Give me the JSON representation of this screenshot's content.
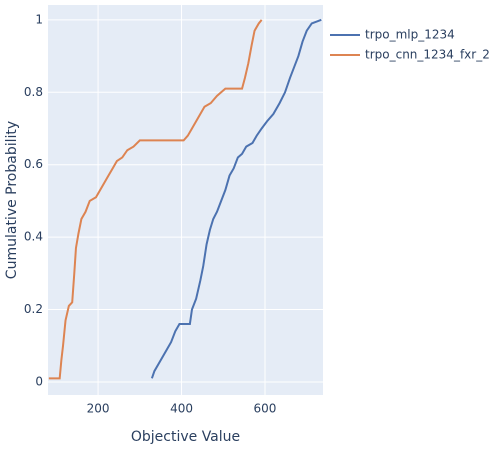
{
  "chart_data": {
    "type": "line",
    "xlabel": "Objective Value",
    "ylabel": "Cumulative Probability",
    "xlim": [
      80,
      739
    ],
    "ylim": [
      -0.036,
      1.041
    ],
    "xticks": [
      200,
      400,
      600
    ],
    "yticks": [
      0,
      0.2,
      0.4,
      0.6,
      0.8,
      1
    ],
    "grid": true,
    "legend": "outside-right-top",
    "series": [
      {
        "name": "trpo_mlp_1234",
        "color": "#4c72b0",
        "x": [
          329,
          335,
          345,
          355,
          365,
          375,
          385,
          395,
          420,
          425,
          435,
          445,
          452,
          460,
          468,
          476,
          485,
          495,
          505,
          515,
          525,
          535,
          545,
          555,
          570,
          580,
          592,
          605,
          620,
          635,
          648,
          660,
          670,
          680,
          690,
          700,
          712,
          735
        ],
        "values": [
          0.01,
          0.03,
          0.05,
          0.07,
          0.09,
          0.11,
          0.14,
          0.16,
          0.16,
          0.2,
          0.23,
          0.28,
          0.32,
          0.38,
          0.42,
          0.45,
          0.47,
          0.5,
          0.53,
          0.57,
          0.59,
          0.62,
          0.63,
          0.65,
          0.66,
          0.68,
          0.7,
          0.72,
          0.74,
          0.77,
          0.8,
          0.84,
          0.87,
          0.9,
          0.94,
          0.97,
          0.99,
          1.0
        ]
      },
      {
        "name": "trpo_cnn_1234_fxr_2",
        "color": "#dd8452",
        "x": [
          82,
          108,
          112,
          116,
          122,
          130,
          138,
          143,
          147,
          153,
          160,
          170,
          180,
          195,
          205,
          215,
          225,
          235,
          245,
          258,
          270,
          285,
          300,
          405,
          415,
          425,
          435,
          445,
          455,
          470,
          485,
          505,
          545,
          552,
          560,
          568,
          575,
          585,
          592
        ],
        "values": [
          0.01,
          0.01,
          0.06,
          0.1,
          0.17,
          0.21,
          0.22,
          0.3,
          0.37,
          0.41,
          0.45,
          0.47,
          0.5,
          0.51,
          0.53,
          0.55,
          0.57,
          0.59,
          0.61,
          0.62,
          0.64,
          0.65,
          0.667,
          0.667,
          0.68,
          0.7,
          0.72,
          0.74,
          0.76,
          0.77,
          0.79,
          0.81,
          0.81,
          0.84,
          0.88,
          0.93,
          0.97,
          0.99,
          1.0
        ]
      }
    ]
  }
}
